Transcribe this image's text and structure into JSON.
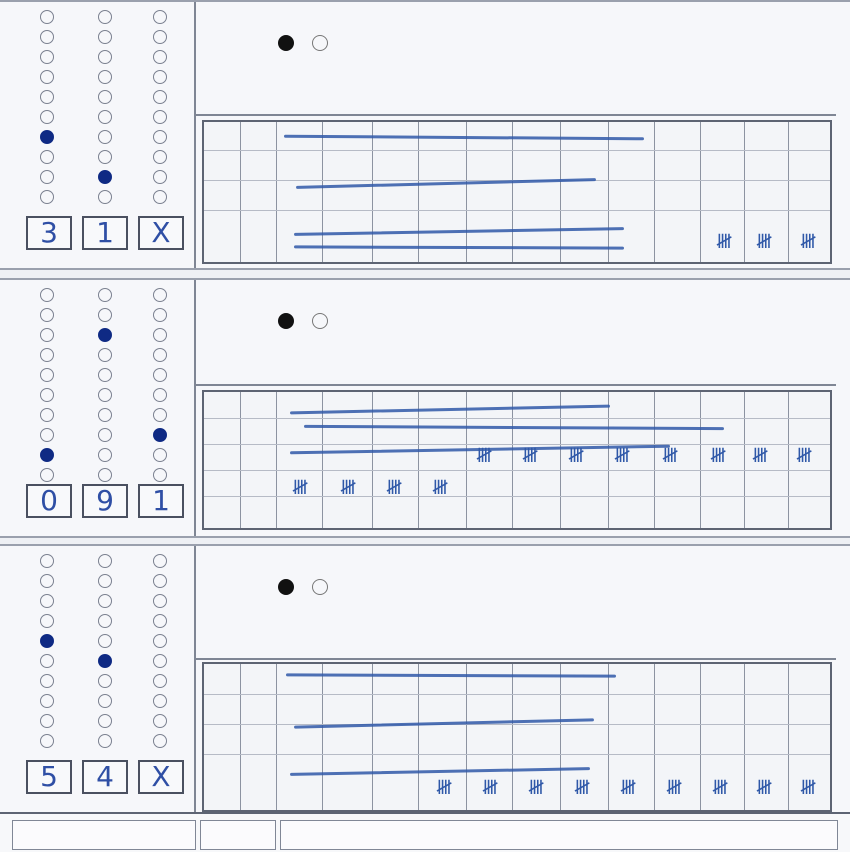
{
  "sheets": [
    {
      "name": "sheet-1",
      "digits": [
        "3",
        "1",
        "X"
      ]
    },
    {
      "name": "sheet-2",
      "digits": [
        "0",
        "9",
        "1"
      ]
    },
    {
      "name": "sheet-3",
      "digits": [
        "5",
        "4",
        "X"
      ]
    }
  ],
  "tally_glyph": "𝍸",
  "colors": {
    "ink": "#2f58a8",
    "fill": "#0f2a84",
    "line": "#5d6473"
  }
}
